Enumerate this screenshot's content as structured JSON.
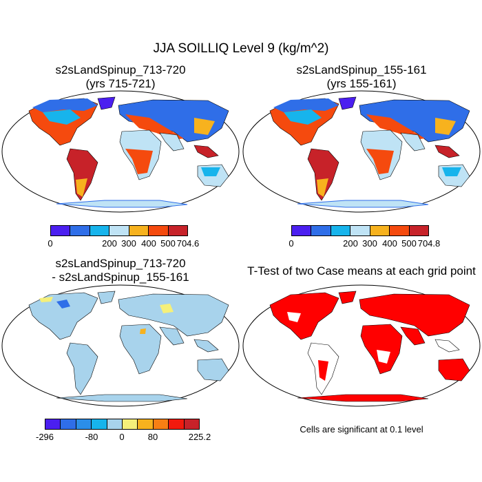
{
  "title": "JJA SOILLIQ Level 9 (kg/m^2)",
  "panels": [
    {
      "id": "top-left",
      "title_line1": "s2sLandSpinup_713-720",
      "title_line2": "(yrs 715-721)",
      "colorbar": {
        "colors": [
          "#4b1ff0",
          "#2f6ee8",
          "#17b4ec",
          "#bfe3f5",
          "#f7b21e",
          "#f54a0e",
          "#c72229"
        ],
        "labels": [
          "0",
          "200",
          "300",
          "400",
          "500",
          "704.6"
        ]
      }
    },
    {
      "id": "top-right",
      "title_line1": "s2sLandSpinup_155-161",
      "title_line2": "(yrs 155-161)",
      "colorbar": {
        "colors": [
          "#4b1ff0",
          "#2f6ee8",
          "#17b4ec",
          "#bfe3f5",
          "#f7b21e",
          "#f54a0e",
          "#c72229"
        ],
        "labels": [
          "0",
          "200",
          "300",
          "400",
          "500",
          "704.8"
        ]
      }
    },
    {
      "id": "bottom-left",
      "title_line1": "s2sLandSpinup_713-720",
      "title_line2": "- s2sLandSpinup_155-161",
      "colorbar": {
        "colors": [
          "#4b1ff0",
          "#2f6ee8",
          "#2b8ee8",
          "#17b4ec",
          "#a8d3ec",
          "#f5f07a",
          "#f7b21e",
          "#f77f14",
          "#f21a0d",
          "#c72229"
        ],
        "labels": [
          "-296",
          "-80",
          "0",
          "80",
          "225.2"
        ]
      }
    },
    {
      "id": "bottom-right",
      "title_line1": "T-Test of two Case means at each grid point",
      "note": "Cells are significant at 0.1 level",
      "color": "#ff0000"
    }
  ]
}
